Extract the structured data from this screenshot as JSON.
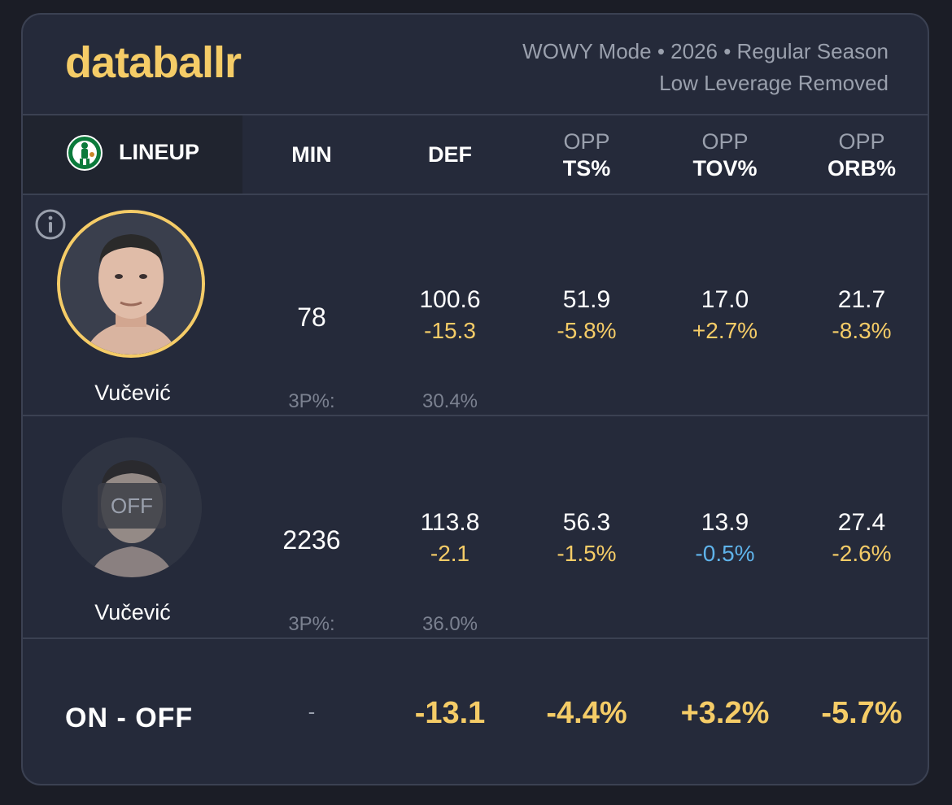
{
  "brand": {
    "name": "databallr",
    "color": "#f5cc67"
  },
  "header": {
    "subtitle_line1": "WOWY Mode • 2026 • Regular Season",
    "subtitle_line2": "Low Leverage Removed"
  },
  "columns": {
    "lineup": "LINEUP",
    "min": "MIN",
    "def": "DEF",
    "ts_top": "OPP",
    "ts_bottom": "TS%",
    "tov_top": "OPP",
    "tov_bottom": "TOV%",
    "orb_top": "OPP",
    "orb_bottom": "ORB%"
  },
  "team_logo_icon": "celtics-logo-icon",
  "rows": [
    {
      "player": "Vučević",
      "status": "on",
      "min": "78",
      "def": {
        "value": "100.6",
        "delta": "-15.3"
      },
      "ts": {
        "value": "51.9",
        "delta": "-5.8%"
      },
      "tov": {
        "value": "17.0",
        "delta": "+2.7%"
      },
      "orb": {
        "value": "21.7",
        "delta": "-8.3%"
      },
      "tp_label": "3P%:",
      "tp_value": "30.4%"
    },
    {
      "player": "Vučević",
      "status": "off",
      "status_label": "OFF",
      "min": "2236",
      "def": {
        "value": "113.8",
        "delta": "-2.1"
      },
      "ts": {
        "value": "56.3",
        "delta": "-1.5%"
      },
      "tov": {
        "value": "13.9",
        "delta": "-0.5%"
      },
      "orb": {
        "value": "27.4",
        "delta": "-2.6%"
      },
      "tp_label": "3P%:",
      "tp_value": "36.0%"
    }
  ],
  "on_off": {
    "label": "ON - OFF",
    "min": "-",
    "def": "-13.1",
    "ts": "-4.4%",
    "tov": "+3.2%",
    "orb": "-5.7%"
  },
  "colors": {
    "positive": "#f5cc67",
    "negative": "#5fb3ea"
  }
}
